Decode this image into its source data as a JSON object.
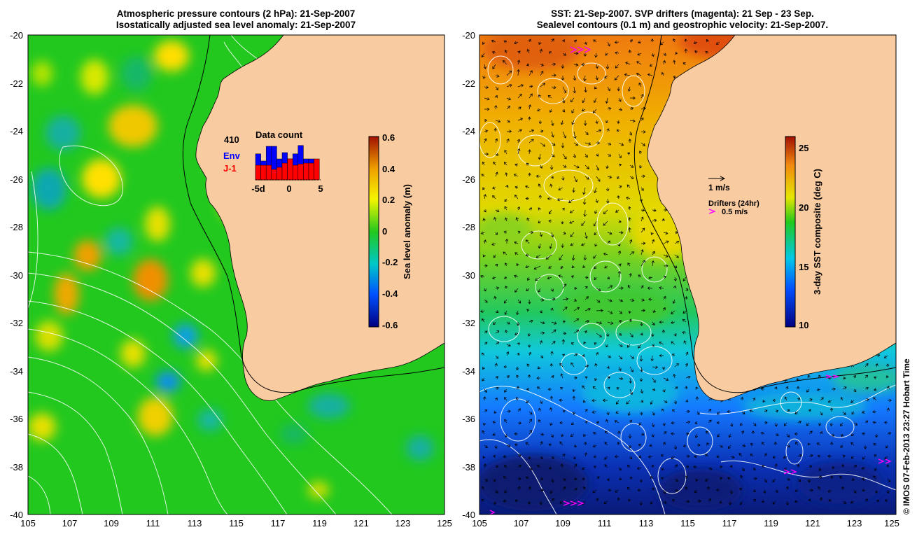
{
  "left_panel": {
    "title_line1": "Atmospheric pressure contours (2 hPa): 21-Sep-2007",
    "title_line2": "Isostatically adjusted sea level anomaly: 21-Sep-2007",
    "x_ticks": [
      "105",
      "107",
      "109",
      "111",
      "113",
      "115",
      "117",
      "119",
      "121",
      "123",
      "125"
    ],
    "y_ticks": [
      "-20",
      "-22",
      "-24",
      "-26",
      "-28",
      "-30",
      "-32",
      "-34",
      "-36",
      "-38",
      "-40"
    ],
    "colorbar": {
      "label": "Sea level anomaly (m)",
      "ticks": [
        "0.6",
        "0.4",
        "0.2",
        "0",
        "-0.2",
        "-0.4",
        "-0.6"
      ]
    },
    "inset": {
      "count": "410",
      "title": "Data count",
      "legend_env": "Env",
      "legend_j1": "J-1",
      "x_labels": [
        "-5d",
        "0",
        "5"
      ],
      "env_bars": [
        0.62,
        0.45,
        0.8,
        0.8,
        0.5,
        0.65,
        0.5,
        0.62,
        0.82,
        0.5,
        0.5,
        0.0
      ],
      "j1_bars": [
        0.35,
        0.35,
        0.35,
        0.25,
        0.3,
        0.4,
        0.5,
        0.35,
        0.38,
        0.4,
        0.4,
        0.5
      ],
      "env_color": "#0000ff",
      "j1_color": "#ff0000"
    }
  },
  "right_panel": {
    "title_line1": "SST: 21-Sep-2007. SVP drifters (magenta): 21 Sep - 23 Sep.",
    "title_line2": "Sealevel contours (0.1 m) and geostrophic velocity: 21-Sep-2007.",
    "x_ticks": [
      "105",
      "107",
      "109",
      "111",
      "113",
      "115",
      "117",
      "119",
      "121",
      "123",
      "125"
    ],
    "y_ticks": [
      "-20",
      "-22",
      "-24",
      "-26",
      "-28",
      "-30",
      "-32",
      "-34",
      "-36",
      "-38",
      "-40"
    ],
    "colorbar": {
      "label": "3-day SST composite (deg C)",
      "ticks": [
        "25",
        "20",
        "15",
        "10"
      ]
    },
    "velocity_scale": "1 m/s",
    "drifter_legend_title": "Drifters (24hr)",
    "drifter_legend_value": "0.5 m/s",
    "drifter_color": "#ff00ff"
  },
  "credit": "© IMOS 07-Feb-2013 23:27 Hobart Time",
  "colors": {
    "land": "#f9cba0",
    "sla_base": "#22c81e",
    "sst_warm": "#f08a10",
    "sst_cold": "#0a1e96"
  }
}
